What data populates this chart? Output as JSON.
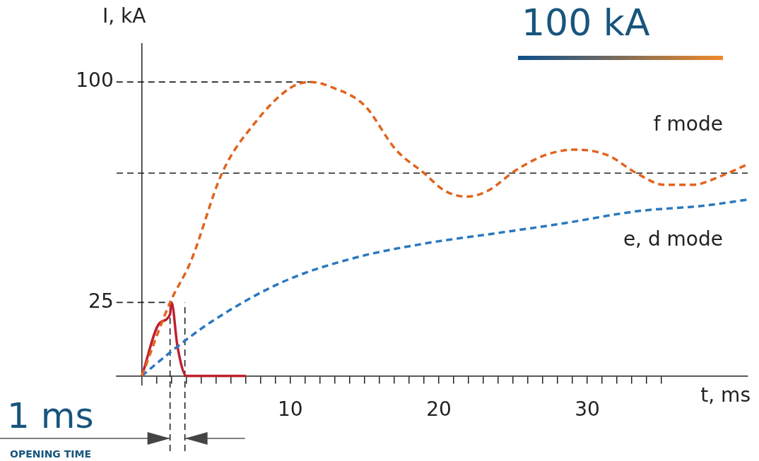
{
  "chart_data": {
    "type": "line",
    "title": "100 kA",
    "xlabel": "t, ms",
    "ylabel": "I, kA",
    "xlim": [
      -1.7,
      40.8
    ],
    "ylim": [
      -3,
      113
    ],
    "xticks": [
      {
        "value": 1,
        "label": null
      },
      {
        "value": 2,
        "label": null
      },
      {
        "value": 3,
        "label": null
      },
      {
        "value": 4,
        "label": null
      },
      {
        "value": 5,
        "label": null
      },
      {
        "value": 6,
        "label": null
      },
      {
        "value": 7,
        "label": null
      },
      {
        "value": 8,
        "label": null
      },
      {
        "value": 9,
        "label": null
      },
      10,
      {
        "value": 11,
        "label": null
      },
      {
        "value": 12,
        "label": null
      },
      {
        "value": 13,
        "label": null
      },
      {
        "value": 14,
        "label": null
      },
      {
        "value": 15,
        "label": null
      },
      {
        "value": 16,
        "label": null
      },
      {
        "value": 17,
        "label": null
      },
      {
        "value": 18,
        "label": null
      },
      {
        "value": 19,
        "label": null
      },
      20,
      {
        "value": 21,
        "label": null
      },
      {
        "value": 22,
        "label": null
      },
      {
        "value": 23,
        "label": null
      },
      {
        "value": 24,
        "label": null
      },
      {
        "value": 25,
        "label": null
      },
      {
        "value": 26,
        "label": null
      },
      {
        "value": 27,
        "label": null
      },
      {
        "value": 28,
        "label": null
      },
      {
        "value": 29,
        "label": null
      },
      30,
      {
        "value": 31,
        "label": null
      },
      {
        "value": 32,
        "label": null
      },
      {
        "value": 33,
        "label": null
      },
      {
        "value": 34,
        "label": null
      },
      {
        "value": 35,
        "label": null
      }
    ],
    "yticks": [
      25,
      100
    ],
    "series": [
      {
        "name": "f mode",
        "color": "#e0641e",
        "line_style": "dashed",
        "x": [
          0,
          1.9,
          3.3,
          5.4,
          7.6,
          10,
          11.4,
          12.9,
          15,
          17.1,
          19,
          20.4,
          21.9,
          23.3,
          25.2,
          27.1,
          29.2,
          31.4,
          33.3,
          35.2,
          37.1,
          39,
          40.8
        ],
        "values": [
          0,
          25,
          39,
          69,
          86,
          98,
          100,
          98,
          92,
          77,
          69,
          63,
          61,
          63,
          70,
          75,
          77,
          75,
          69,
          65,
          65,
          68,
          72
        ]
      },
      {
        "name": "e, d mode",
        "color": "#2a78c0",
        "line_style": "dashed",
        "x": [
          0,
          1.9,
          4.7,
          9.5,
          14.2,
          19,
          23.8,
          28.5,
          33.3,
          38,
          40.8
        ],
        "values": [
          0,
          8,
          18.5,
          32,
          40,
          45,
          48.5,
          52,
          56,
          58,
          60
        ]
      },
      {
        "color": "#c0202f",
        "line_style": "solid",
        "x": [
          0,
          1.2,
          1.9,
          2,
          2.4,
          3,
          7
        ],
        "values": [
          0,
          18,
          21,
          25,
          10,
          0,
          0
        ]
      }
    ],
    "ref_lines": [
      {
        "axis": "y",
        "value": 100,
        "color": "#222222",
        "line_style": "dashed"
      },
      {
        "axis": "y",
        "value": 69,
        "color": "#222222",
        "line_style": "dashed"
      },
      {
        "axis": "y",
        "value": 25,
        "color": "#222222",
        "line_style": "dashed"
      },
      {
        "axis": "x",
        "value": 1.9,
        "color": "#222222",
        "line_style": "dashed"
      },
      {
        "axis": "x",
        "value": 2.9,
        "color": "#222222",
        "line_style": "dashed"
      }
    ],
    "annotations": [
      "1 ms",
      "OPENING TIME"
    ],
    "legend": false,
    "grid": false,
    "marker": "none"
  }
}
